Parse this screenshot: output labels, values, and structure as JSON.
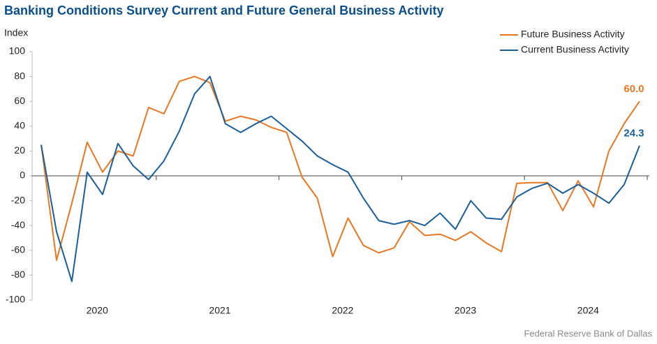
{
  "chart_data": {
    "type": "line",
    "title": "Banking Conditions Survey Current and Future General Business Activity",
    "y_label": "Index",
    "source": "Federal Reserve Bank of Dallas",
    "categories": [
      null,
      null,
      null,
      null,
      "2020",
      null,
      null,
      null,
      null,
      null,
      null,
      null,
      "2021",
      null,
      null,
      null,
      null,
      null,
      null,
      null,
      "2022",
      null,
      null,
      null,
      null,
      null,
      null,
      null,
      "2023",
      null,
      null,
      null,
      null,
      null,
      null,
      null,
      "2024",
      null,
      null,
      null
    ],
    "series": [
      {
        "name": "Future Business Activity",
        "color": "#e87722",
        "values": [
          25,
          -68,
          -22,
          27,
          3,
          20,
          16,
          55,
          50,
          76,
          80,
          75,
          44,
          48,
          45,
          39,
          35,
          -1,
          -18,
          -65,
          -34,
          -56,
          -62,
          -58,
          -37,
          -48,
          -47,
          -52,
          -45,
          -54,
          -61,
          -6,
          -5.5,
          -5.5,
          -28,
          -4,
          -25,
          20,
          42,
          60.0
        ],
        "value_labels": [
          null,
          null,
          null,
          null,
          null,
          null,
          null,
          null,
          null,
          null,
          null,
          null,
          null,
          null,
          null,
          null,
          null,
          null,
          null,
          null,
          null,
          null,
          null,
          null,
          null,
          null,
          null,
          null,
          null,
          null,
          null,
          null,
          null,
          null,
          null,
          null,
          null,
          null,
          null,
          "60.0"
        ]
      },
      {
        "name": "Current Business Activity",
        "color": "#1a5e9a",
        "values": [
          25,
          -45,
          -85,
          3,
          -15,
          26,
          8,
          -3,
          12,
          36,
          66,
          80,
          42,
          35,
          42,
          48,
          38,
          28,
          16,
          9,
          3,
          -18,
          -36,
          -39,
          -36,
          -40,
          -30,
          -43,
          -20,
          -34,
          -35,
          -17,
          -10,
          -6,
          -14,
          -7,
          -14,
          -22,
          -7,
          24.3
        ],
        "value_labels": [
          null,
          null,
          null,
          null,
          null,
          null,
          null,
          null,
          null,
          null,
          null,
          null,
          null,
          null,
          null,
          null,
          null,
          null,
          null,
          null,
          null,
          null,
          null,
          null,
          null,
          null,
          null,
          null,
          null,
          null,
          null,
          null,
          null,
          null,
          null,
          null,
          null,
          null,
          null,
          "24.3"
        ]
      }
    ],
    "ylim": [
      -100,
      100
    ],
    "yticks": [
      -100,
      -80,
      -60,
      -40,
      -20,
      0,
      20,
      40,
      60,
      80,
      100
    ],
    "grid": false,
    "legend": "top-right"
  }
}
